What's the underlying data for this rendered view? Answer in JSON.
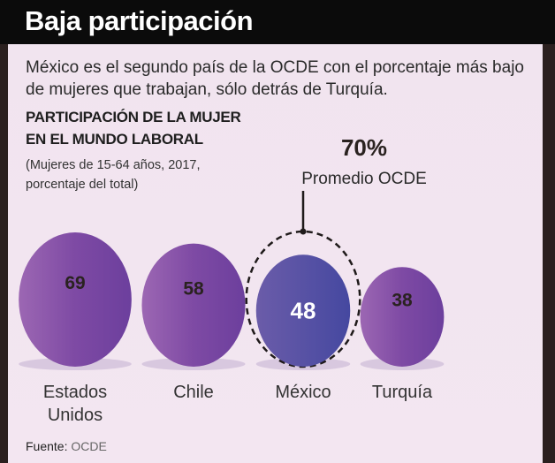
{
  "header": {
    "title": "Baja participación"
  },
  "intro": "México es el segundo país de la OCDE con el porcentaje más bajo de mujeres que trabajan, sólo detrás de Turquía.",
  "subtitle_line1": "PARTICIPACIÓN DE LA MUJER",
  "subtitle_line2": "EN EL MUNDO LABORAL",
  "note_line1": "(Mujeres de 15-64 años, 2017,",
  "note_line2": "porcentaje del total)",
  "source_label": "Fuente:",
  "source_value": "OCDE",
  "chart_data": {
    "type": "bubble",
    "title": "PARTICIPACIÓN DE LA MUJER EN EL MUNDO LABORAL",
    "unit": "porcentaje del total",
    "categories": [
      [
        "Estados",
        "Unidos"
      ],
      [
        "Chile"
      ],
      [
        "México"
      ],
      [
        "Turquía"
      ]
    ],
    "values": [
      69,
      58,
      48,
      38
    ],
    "highlight": "México",
    "reference": {
      "value": 70,
      "label_value": "70%",
      "label": "Promedio OCDE"
    },
    "colors": {
      "bubble": "#7d4aa3",
      "highlight": "#4f4fa0",
      "shadow": "#d8c8df"
    }
  }
}
